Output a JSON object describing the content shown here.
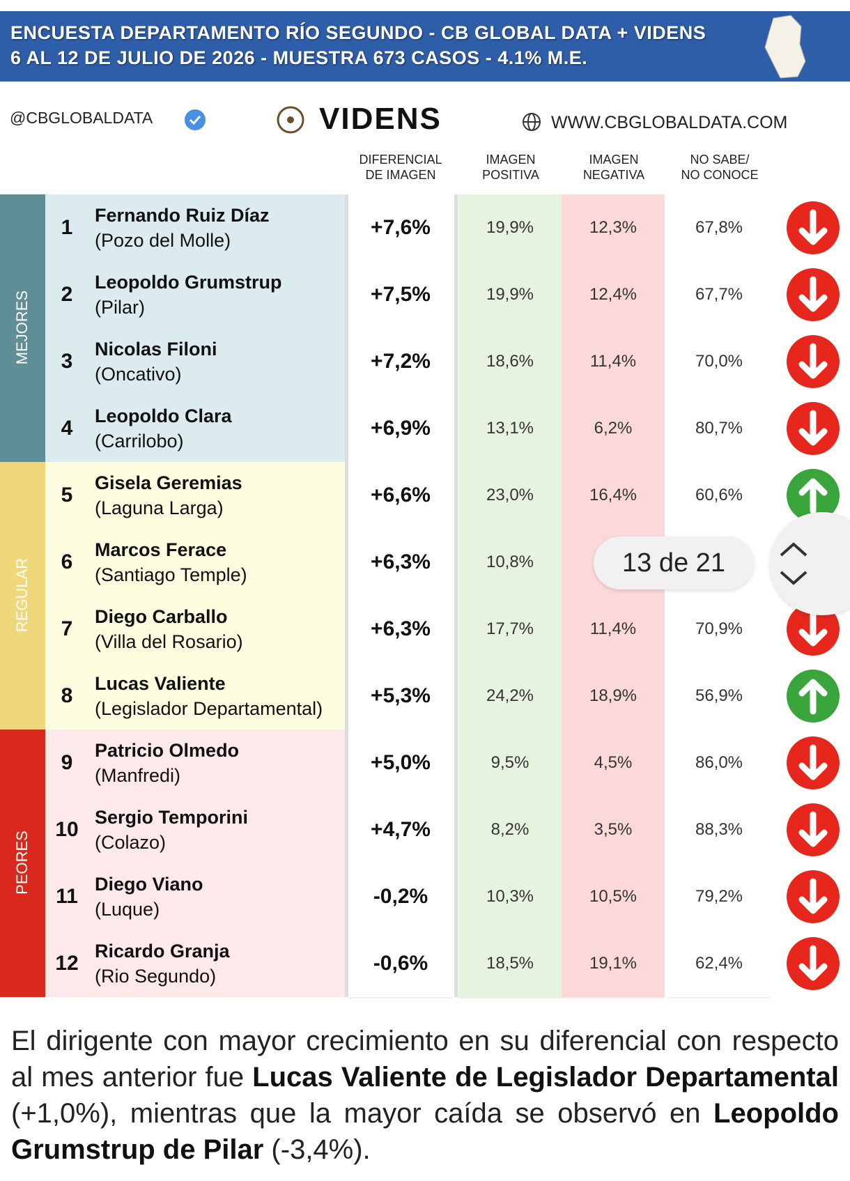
{
  "header": {
    "title": "ENCUESTA DEPARTAMENTO RÍO SEGUNDO - CB GLOBAL DATA + VIDENS",
    "subtitle": "6 AL 12 DE JULIO DE 2026 - MUESTRA 673 CASOS - 4.1% M.E."
  },
  "brand": {
    "handle": "@CBGLOBALDATA",
    "logo": "VIDENS",
    "website": "WWW.CBGLOBALDATA.COM"
  },
  "table": {
    "columns": [
      "DIFERENCIAL\nDE IMAGEN",
      "IMAGEN\nPOSITIVA",
      "IMAGEN\nNEGATIVA",
      "NO SABE/\nNO CONOCE"
    ],
    "groups": [
      {
        "label": "MEJORES",
        "color": "#5f8e96",
        "row_color": "#dcebee",
        "rows": [
          {
            "rank": "1",
            "name": "Fernando Ruiz Díaz",
            "place": "(Pozo del Molle)",
            "diff": "+7,6%",
            "pos": "19,9%",
            "neg": "12,3%",
            "ns": "67,8%",
            "trend": "down"
          },
          {
            "rank": "2",
            "name": "Leopoldo Grumstrup",
            "place": "(Pilar)",
            "diff": "+7,5%",
            "pos": "19,9%",
            "neg": "12,4%",
            "ns": "67,7%",
            "trend": "down"
          },
          {
            "rank": "3",
            "name": "Nicolas Filoni",
            "place": "(Oncativo)",
            "diff": "+7,2%",
            "pos": "18,6%",
            "neg": "11,4%",
            "ns": "70,0%",
            "trend": "down"
          },
          {
            "rank": "4",
            "name": "Leopoldo Clara",
            "place": "(Carrilobo)",
            "diff": "+6,9%",
            "pos": "13,1%",
            "neg": "6,2%",
            "ns": "80,7%",
            "trend": "down"
          }
        ]
      },
      {
        "label": "REGULAR",
        "color": "#f0d77a",
        "row_color": "#fdfde0",
        "rows": [
          {
            "rank": "5",
            "name": "Gisela Geremias",
            "place": "(Laguna Larga)",
            "diff": "+6,6%",
            "pos": "23,0%",
            "neg": "16,4%",
            "ns": "60,6%",
            "trend": "up"
          },
          {
            "rank": "6",
            "name": "Marcos Ferace",
            "place": "(Santiago Temple)",
            "diff": "+6,3%",
            "pos": "10,8%",
            "neg": null,
            "ns": null,
            "trend": null
          },
          {
            "rank": "7",
            "name": "Diego Carballo",
            "place": "(Villa del Rosario)",
            "diff": "+6,3%",
            "pos": "17,7%",
            "neg": "11,4%",
            "ns": "70,9%",
            "trend": "down"
          },
          {
            "rank": "8",
            "name": "Lucas Valiente",
            "place": "(Legislador Departamental)",
            "diff": "+5,3%",
            "pos": "24,2%",
            "neg": "18,9%",
            "ns": "56,9%",
            "trend": "up"
          }
        ]
      },
      {
        "label": "PEORES",
        "color": "#d9291c",
        "row_color": "#fde9ea",
        "rows": [
          {
            "rank": "9",
            "name": "Patricio Olmedo",
            "place": "(Manfredi)",
            "diff": "+5,0%",
            "pos": "9,5%",
            "neg": "4,5%",
            "ns": "86,0%",
            "trend": "down"
          },
          {
            "rank": "10",
            "name": "Sergio Temporini",
            "place": "(Colazo)",
            "diff": "+4,7%",
            "pos": "8,2%",
            "neg": "3,5%",
            "ns": "88,3%",
            "trend": "down"
          },
          {
            "rank": "11",
            "name": "Diego Viano",
            "place": "(Luque)",
            "diff": "-0,2%",
            "pos": "10,3%",
            "neg": "10,5%",
            "ns": "79,2%",
            "trend": "down"
          },
          {
            "rank": "12",
            "name": "Ricardo Granja",
            "place": "(Rio Segundo)",
            "diff": "-0,6%",
            "pos": "18,5%",
            "neg": "19,1%",
            "ns": "62,4%",
            "trend": "down"
          }
        ]
      }
    ]
  },
  "footer": {
    "parts": [
      {
        "text": "El dirigente con mayor crecimiento en su diferencial con respecto al mes anterior fue ",
        "bold": false
      },
      {
        "text": "Lucas Valiente de Legislador Departamental",
        "bold": true
      },
      {
        "text": " (+1,0%), mientras que la mayor caída se observó en ",
        "bold": false
      },
      {
        "text": "Leopoldo Grumstrup de Pilar",
        "bold": true
      },
      {
        "text": " (-3,4%).",
        "bold": false
      }
    ]
  },
  "pager": {
    "label": "13 de 21"
  }
}
